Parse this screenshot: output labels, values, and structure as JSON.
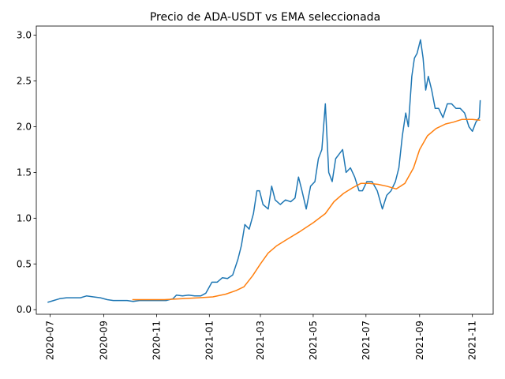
{
  "chart_data": {
    "type": "line",
    "title": "Precio de ADA-USDT vs EMA seleccionada",
    "xlabel": "",
    "ylabel": "",
    "x_type": "date",
    "xlim": [
      "2020-06-15",
      "2021-11-25"
    ],
    "ylim": [
      -0.05,
      3.1
    ],
    "x_ticks": [
      "2020-07-01",
      "2020-09-01",
      "2020-11-01",
      "2021-01-01",
      "2021-03-01",
      "2021-05-01",
      "2021-07-01",
      "2021-09-01",
      "2021-11-01"
    ],
    "x_tick_labels": [
      "2020-07",
      "2020-09",
      "2020-11",
      "2021-01",
      "2021-03",
      "2021-05",
      "2021-07",
      "2021-09",
      "2021-11"
    ],
    "y_ticks": [
      0.0,
      0.5,
      1.0,
      1.5,
      2.0,
      2.5,
      3.0
    ],
    "y_tick_labels": [
      "0.0",
      "0.5",
      "1.0",
      "1.5",
      "2.0",
      "2.5",
      "3.0"
    ],
    "grid": false,
    "legend": false,
    "series": [
      {
        "color": "#1f77b4",
        "points": [
          [
            "2020-06-28",
            0.08
          ],
          [
            "2020-07-05",
            0.1
          ],
          [
            "2020-07-12",
            0.12
          ],
          [
            "2020-07-20",
            0.13
          ],
          [
            "2020-07-28",
            0.13
          ],
          [
            "2020-08-05",
            0.13
          ],
          [
            "2020-08-12",
            0.15
          ],
          [
            "2020-08-20",
            0.14
          ],
          [
            "2020-08-28",
            0.13
          ],
          [
            "2020-09-05",
            0.11
          ],
          [
            "2020-09-12",
            0.1
          ],
          [
            "2020-09-20",
            0.1
          ],
          [
            "2020-09-28",
            0.1
          ],
          [
            "2020-10-05",
            0.09
          ],
          [
            "2020-10-12",
            0.1
          ],
          [
            "2020-10-20",
            0.1
          ],
          [
            "2020-10-28",
            0.1
          ],
          [
            "2020-11-05",
            0.1
          ],
          [
            "2020-11-12",
            0.1
          ],
          [
            "2020-11-20",
            0.12
          ],
          [
            "2020-11-24",
            0.16
          ],
          [
            "2020-12-01",
            0.15
          ],
          [
            "2020-12-08",
            0.16
          ],
          [
            "2020-12-15",
            0.15
          ],
          [
            "2020-12-22",
            0.15
          ],
          [
            "2020-12-28",
            0.18
          ],
          [
            "2021-01-04",
            0.3
          ],
          [
            "2021-01-10",
            0.3
          ],
          [
            "2021-01-16",
            0.35
          ],
          [
            "2021-01-22",
            0.34
          ],
          [
            "2021-01-28",
            0.38
          ],
          [
            "2021-02-03",
            0.55
          ],
          [
            "2021-02-07",
            0.7
          ],
          [
            "2021-02-11",
            0.93
          ],
          [
            "2021-02-16",
            0.88
          ],
          [
            "2021-02-21",
            1.05
          ],
          [
            "2021-02-25",
            1.3
          ],
          [
            "2021-02-28",
            1.3
          ],
          [
            "2021-03-04",
            1.15
          ],
          [
            "2021-03-10",
            1.1
          ],
          [
            "2021-03-14",
            1.35
          ],
          [
            "2021-03-18",
            1.2
          ],
          [
            "2021-03-24",
            1.15
          ],
          [
            "2021-03-30",
            1.2
          ],
          [
            "2021-04-05",
            1.18
          ],
          [
            "2021-04-10",
            1.22
          ],
          [
            "2021-04-14",
            1.45
          ],
          [
            "2021-04-18",
            1.3
          ],
          [
            "2021-04-23",
            1.1
          ],
          [
            "2021-04-28",
            1.35
          ],
          [
            "2021-05-03",
            1.4
          ],
          [
            "2021-05-07",
            1.65
          ],
          [
            "2021-05-11",
            1.75
          ],
          [
            "2021-05-15",
            2.25
          ],
          [
            "2021-05-19",
            1.5
          ],
          [
            "2021-05-23",
            1.4
          ],
          [
            "2021-05-27",
            1.65
          ],
          [
            "2021-05-31",
            1.7
          ],
          [
            "2021-06-04",
            1.75
          ],
          [
            "2021-06-08",
            1.5
          ],
          [
            "2021-06-13",
            1.55
          ],
          [
            "2021-06-18",
            1.45
          ],
          [
            "2021-06-23",
            1.3
          ],
          [
            "2021-06-27",
            1.3
          ],
          [
            "2021-07-02",
            1.4
          ],
          [
            "2021-07-08",
            1.4
          ],
          [
            "2021-07-14",
            1.3
          ],
          [
            "2021-07-20",
            1.1
          ],
          [
            "2021-07-25",
            1.25
          ],
          [
            "2021-07-30",
            1.3
          ],
          [
            "2021-08-04",
            1.4
          ],
          [
            "2021-08-08",
            1.55
          ],
          [
            "2021-08-12",
            1.9
          ],
          [
            "2021-08-16",
            2.15
          ],
          [
            "2021-08-19",
            2.0
          ],
          [
            "2021-08-23",
            2.55
          ],
          [
            "2021-08-26",
            2.75
          ],
          [
            "2021-08-29",
            2.8
          ],
          [
            "2021-09-02",
            2.95
          ],
          [
            "2021-09-05",
            2.75
          ],
          [
            "2021-09-08",
            2.4
          ],
          [
            "2021-09-11",
            2.55
          ],
          [
            "2021-09-15",
            2.4
          ],
          [
            "2021-09-19",
            2.2
          ],
          [
            "2021-09-23",
            2.2
          ],
          [
            "2021-09-28",
            2.1
          ],
          [
            "2021-10-03",
            2.25
          ],
          [
            "2021-10-08",
            2.25
          ],
          [
            "2021-10-13",
            2.2
          ],
          [
            "2021-10-18",
            2.2
          ],
          [
            "2021-10-23",
            2.15
          ],
          [
            "2021-10-28",
            2.0
          ],
          [
            "2021-11-01",
            1.95
          ],
          [
            "2021-11-05",
            2.05
          ],
          [
            "2021-11-09",
            2.1
          ],
          [
            "2021-11-10",
            2.29
          ]
        ]
      },
      {
        "color": "#ff7f0e",
        "points": [
          [
            "2020-10-04",
            0.11
          ],
          [
            "2020-10-20",
            0.11
          ],
          [
            "2020-11-10",
            0.11
          ],
          [
            "2020-12-01",
            0.12
          ],
          [
            "2020-12-20",
            0.13
          ],
          [
            "2021-01-05",
            0.14
          ],
          [
            "2021-01-20",
            0.17
          ],
          [
            "2021-02-01",
            0.21
          ],
          [
            "2021-02-10",
            0.25
          ],
          [
            "2021-02-20",
            0.37
          ],
          [
            "2021-03-01",
            0.5
          ],
          [
            "2021-03-10",
            0.62
          ],
          [
            "2021-03-20",
            0.7
          ],
          [
            "2021-04-01",
            0.77
          ],
          [
            "2021-04-15",
            0.85
          ],
          [
            "2021-05-01",
            0.95
          ],
          [
            "2021-05-15",
            1.05
          ],
          [
            "2021-05-25",
            1.18
          ],
          [
            "2021-06-05",
            1.27
          ],
          [
            "2021-06-15",
            1.33
          ],
          [
            "2021-06-25",
            1.38
          ],
          [
            "2021-07-05",
            1.38
          ],
          [
            "2021-07-15",
            1.37
          ],
          [
            "2021-07-25",
            1.35
          ],
          [
            "2021-08-05",
            1.32
          ],
          [
            "2021-08-15",
            1.38
          ],
          [
            "2021-08-25",
            1.55
          ],
          [
            "2021-09-01",
            1.75
          ],
          [
            "2021-09-10",
            1.9
          ],
          [
            "2021-09-20",
            1.98
          ],
          [
            "2021-10-01",
            2.03
          ],
          [
            "2021-10-10",
            2.05
          ],
          [
            "2021-10-20",
            2.08
          ],
          [
            "2021-11-01",
            2.08
          ],
          [
            "2021-11-10",
            2.07
          ]
        ]
      }
    ]
  }
}
